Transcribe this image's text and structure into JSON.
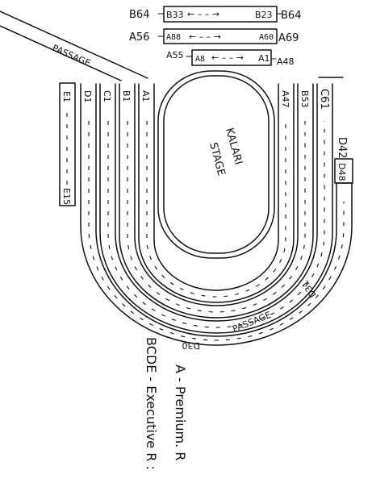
{
  "labels": {
    "b64_left": "B64",
    "b33": "B33",
    "b23": "B23",
    "b64_right": "B64",
    "a56": "A56",
    "a88": "A88",
    "a60": "A60",
    "a69": "A69",
    "a55": "A55",
    "a8_box": "A8",
    "a1_box": "A1",
    "a48": "A48",
    "passage_top": "PASSAGE",
    "passage_bottom": "PASSAGE",
    "stage_line1": "KALARI",
    "stage_line2": "STAGE",
    "e1": "E1",
    "e15": "E15",
    "d1": "D1",
    "c1": "C1",
    "b1": "B1",
    "a1": "A1",
    "a47": "A47",
    "b53": "B53",
    "c61": "C61",
    "d42": "D42",
    "d48": "D48",
    "d30": "D30",
    "d31": "D31"
  },
  "arrows": {
    "row_arrow": "←  –  –  →"
  },
  "legend": {
    "line1": "A -  Premium. R",
    "line2": "BCDE -  Executive R :"
  }
}
